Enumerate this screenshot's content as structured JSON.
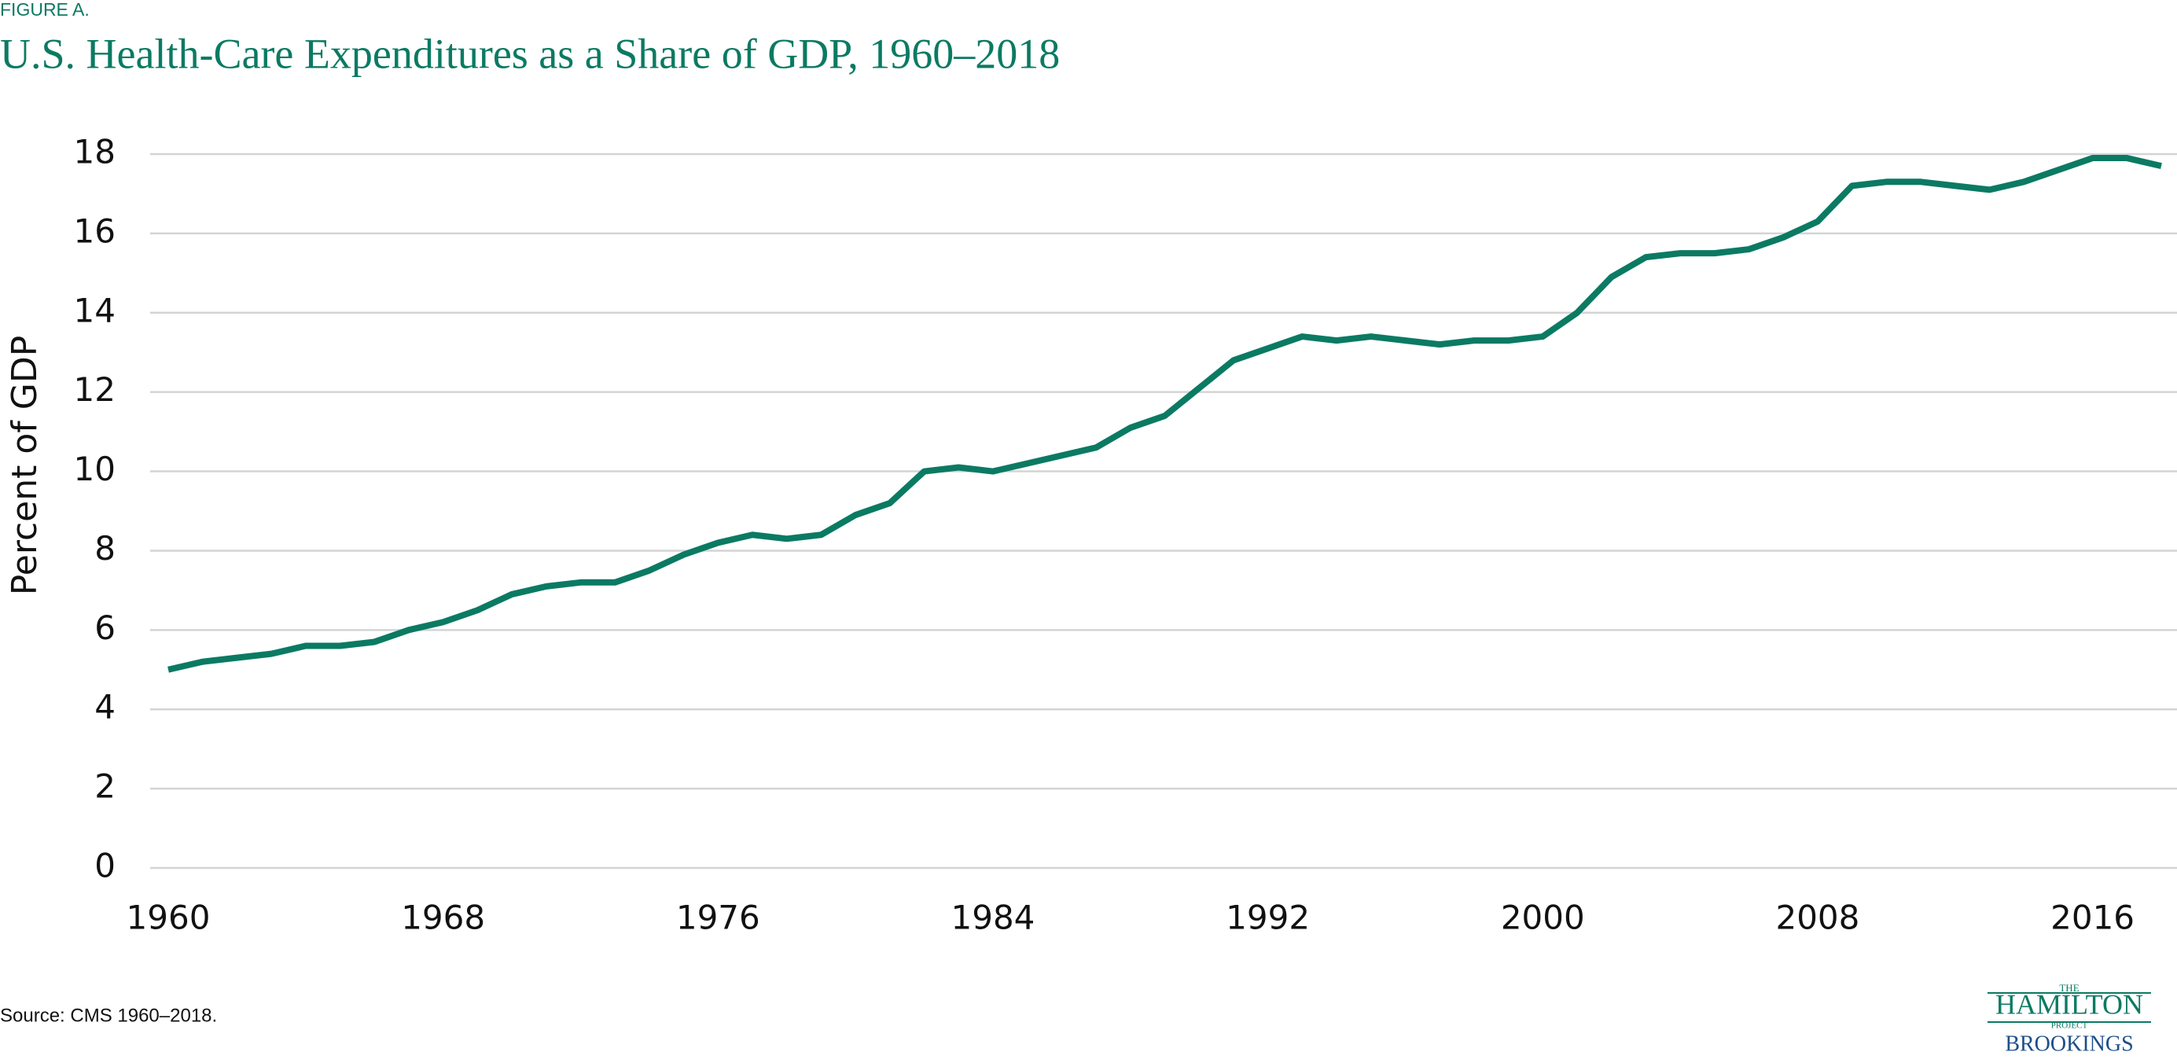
{
  "figure_label": "FIGURE A.",
  "source": "Source: CMS 1960–2018.",
  "logo": {
    "top": "THE",
    "name": "HAMILTON",
    "sub": "PROJECT",
    "org": "BROOKINGS"
  },
  "chart_data": {
    "type": "line",
    "title": "U.S. Health-Care Expenditures as a Share of GDP, 1960–2018",
    "y_label": "Percent of GDP",
    "x": [
      1960,
      1961,
      1962,
      1963,
      1964,
      1965,
      1966,
      1967,
      1968,
      1969,
      1970,
      1971,
      1972,
      1973,
      1974,
      1975,
      1976,
      1977,
      1978,
      1979,
      1980,
      1981,
      1982,
      1983,
      1984,
      1985,
      1986,
      1987,
      1988,
      1989,
      1990,
      1991,
      1992,
      1993,
      1994,
      1995,
      1996,
      1997,
      1998,
      1999,
      2000,
      2001,
      2002,
      2003,
      2004,
      2005,
      2006,
      2007,
      2008,
      2009,
      2010,
      2011,
      2012,
      2013,
      2014,
      2015,
      2016,
      2017,
      2018
    ],
    "values": [
      5.0,
      5.2,
      5.3,
      5.4,
      5.6,
      5.6,
      5.7,
      6.0,
      6.2,
      6.5,
      6.9,
      7.1,
      7.2,
      7.2,
      7.5,
      7.9,
      8.2,
      8.4,
      8.3,
      8.4,
      8.9,
      9.2,
      10.0,
      10.1,
      10.0,
      10.2,
      10.4,
      10.6,
      11.1,
      11.4,
      12.1,
      12.8,
      13.1,
      13.4,
      13.3,
      13.4,
      13.3,
      13.2,
      13.3,
      13.3,
      13.4,
      14.0,
      14.9,
      15.4,
      15.5,
      15.5,
      15.6,
      15.9,
      16.3,
      17.2,
      17.3,
      17.3,
      17.2,
      17.1,
      17.3,
      17.6,
      17.9,
      17.9,
      17.7
    ],
    "color": "#0b7a63",
    "xlim": [
      1960,
      2018
    ],
    "xticks": [
      1960,
      1968,
      1976,
      1984,
      1992,
      2000,
      2008,
      2016
    ],
    "ylim": [
      0,
      18
    ],
    "yticks": [
      0,
      2,
      4,
      6,
      8,
      10,
      12,
      14,
      16,
      18
    ],
    "grid": true
  }
}
